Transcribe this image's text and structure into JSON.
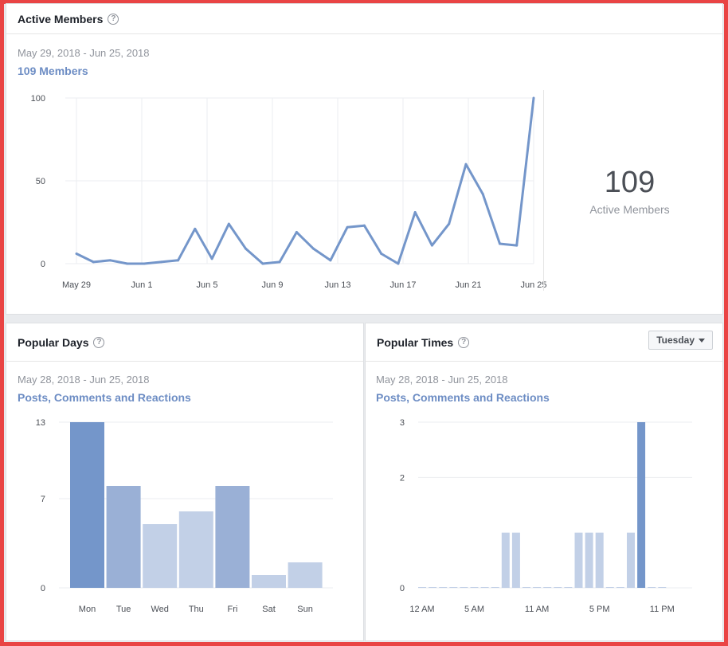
{
  "active_members": {
    "title": "Active Members",
    "help_icon": "question-circle-icon",
    "date_range": "May 29, 2018 - Jun 25, 2018",
    "metric_label": "109 Members",
    "total": "109",
    "total_caption": "Active Members"
  },
  "popular_days": {
    "title": "Popular Days",
    "help_icon": "question-circle-icon",
    "date_range": "May 28, 2018 - Jun 25, 2018",
    "metric_label": "Posts, Comments and Reactions"
  },
  "popular_times": {
    "title": "Popular Times",
    "help_icon": "question-circle-icon",
    "date_range": "May 28, 2018 - Jun 25, 2018",
    "metric_label": "Posts, Comments and Reactions",
    "day_selector": "Tuesday"
  },
  "colors": {
    "line": "#7496ca",
    "bar_dark": "#7496ca",
    "bar_mid": "#9ab0d6",
    "bar_light": "#c2d0e7",
    "frame_border": "#e94444"
  },
  "chart_data": [
    {
      "type": "line",
      "ylim": [
        0,
        100
      ],
      "yticks": [
        "0",
        "50",
        "100"
      ],
      "xticks": [
        "May 29",
        "Jun 1",
        "Jun 5",
        "Jun 9",
        "Jun 13",
        "Jun 17",
        "Jun 21",
        "Jun 25"
      ],
      "x_start": "May 29",
      "x_end": "Jun 25",
      "values": [
        6,
        1,
        2,
        0,
        0,
        1,
        2,
        21,
        3,
        24,
        9,
        0,
        1,
        19,
        9,
        2,
        22,
        23,
        6,
        0,
        31,
        11,
        24,
        60,
        42,
        12,
        11,
        100
      ],
      "grid": true
    },
    {
      "type": "bar",
      "categories": [
        "Mon",
        "Tue",
        "Wed",
        "Thu",
        "Fri",
        "Sat",
        "Sun"
      ],
      "values": [
        13,
        8,
        5,
        6,
        8,
        1,
        2
      ],
      "yticks": [
        "0",
        "7",
        "13"
      ],
      "ylim": [
        0,
        13
      ],
      "grid": true
    },
    {
      "type": "bar",
      "categories": [
        "12 AM",
        "1 AM",
        "2 AM",
        "3 AM",
        "4 AM",
        "5 AM",
        "6 AM",
        "7 AM",
        "8 AM",
        "9 AM",
        "10 AM",
        "11 AM",
        "12 PM",
        "1 PM",
        "2 PM",
        "3 PM",
        "4 PM",
        "5 PM",
        "6 PM",
        "7 PM",
        "8 PM",
        "9 PM",
        "10 PM",
        "11 PM"
      ],
      "xticks": [
        "12 AM",
        "5 AM",
        "11 AM",
        "5 PM",
        "11 PM"
      ],
      "values": [
        0,
        0,
        0,
        0,
        0,
        0,
        0,
        0,
        1,
        1,
        0,
        0,
        0,
        0,
        0,
        1,
        1,
        1,
        0,
        0,
        1,
        3,
        0,
        0
      ],
      "yticks": [
        "0",
        "2",
        "3"
      ],
      "ylim": [
        0,
        3
      ],
      "grid": true
    }
  ]
}
